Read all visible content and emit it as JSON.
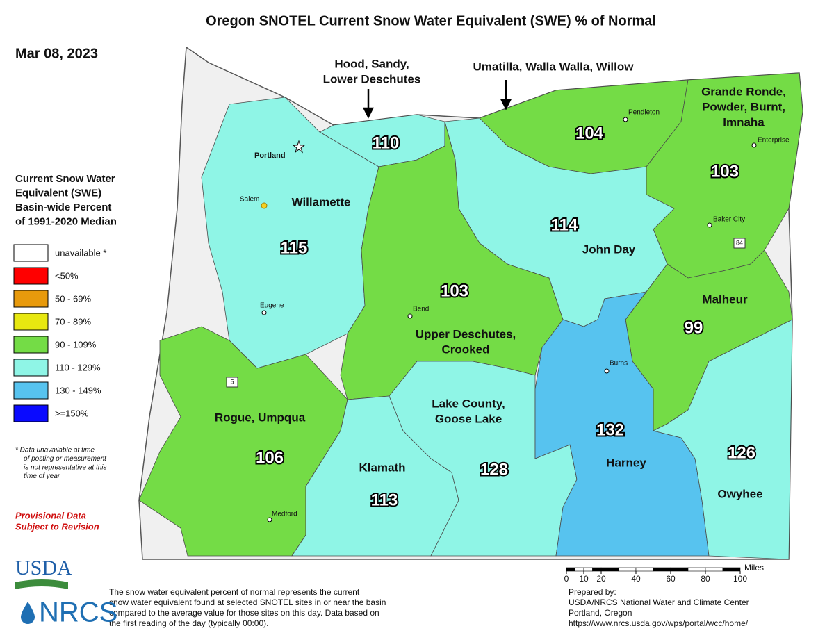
{
  "title": "Oregon SNOTEL Current Snow Water Equivalent (SWE) % of Normal",
  "date": "Mar 08, 2023",
  "legend": {
    "title_lines": [
      "Current Snow Water",
      "Equivalent (SWE)",
      "Basin-wide Percent",
      "of 1991-2020 Median"
    ],
    "items": [
      {
        "label": "unavailable *",
        "color": "#ffffff"
      },
      {
        "label": "<50%",
        "color": "#ff0000"
      },
      {
        "label": "50 - 69%",
        "color": "#e89a0c"
      },
      {
        "label": "70 - 89%",
        "color": "#e8e810"
      },
      {
        "label": "90 - 109%",
        "color": "#74dc46"
      },
      {
        "label": "110 - 129%",
        "color": "#8ff5e6"
      },
      {
        "label": "130 - 149%",
        "color": "#57c3ef"
      },
      {
        "label": ">=150%",
        "color": "#0a0aff"
      }
    ]
  },
  "footnote": [
    "*  Data unavailable at time",
    "of posting or measurement",
    "is not representative at this",
    "time of year"
  ],
  "provisional": [
    "Provisional Data",
    "Subject to Revision"
  ],
  "basins": [
    {
      "name": [
        "Hood, Sandy,",
        "Lower Deschutes"
      ],
      "value": 110,
      "color": "#8ff5e6"
    },
    {
      "name": [
        "Umatilla, Walla Walla, Willow"
      ],
      "value": 104,
      "color": "#74dc46"
    },
    {
      "name": [
        "Grande Ronde,",
        "Powder, Burnt,",
        "Imnaha"
      ],
      "value": 103,
      "color": "#74dc46"
    },
    {
      "name": [
        "Willamette"
      ],
      "value": 115,
      "color": "#8ff5e6"
    },
    {
      "name": [
        "John Day"
      ],
      "value": 114,
      "color": "#8ff5e6"
    },
    {
      "name": [
        "Upper Deschutes,",
        "Crooked"
      ],
      "value": 103,
      "color": "#74dc46"
    },
    {
      "name": [
        "Malheur"
      ],
      "value": 99,
      "color": "#74dc46"
    },
    {
      "name": [
        "Rogue, Umpqua"
      ],
      "value": 106,
      "color": "#74dc46"
    },
    {
      "name": [
        "Klamath"
      ],
      "value": 113,
      "color": "#8ff5e6"
    },
    {
      "name": [
        "Lake County,",
        "Goose Lake"
      ],
      "value": 128,
      "color": "#8ff5e6"
    },
    {
      "name": [
        "Harney"
      ],
      "value": 132,
      "color": "#57c3ef"
    },
    {
      "name": [
        "Owyhee"
      ],
      "value": 126,
      "color": "#8ff5e6"
    }
  ],
  "cities": [
    "Portland",
    "Salem",
    "Eugene",
    "Medford",
    "Bend",
    "Burns",
    "Pendleton",
    "Enterprise",
    "Baker City"
  ],
  "highways": [
    "5",
    "84"
  ],
  "scale": {
    "unit": "Miles",
    "ticks": [
      0,
      10,
      20,
      40,
      60,
      80,
      100
    ]
  },
  "description": [
    "The snow water equivalent percent of normal represents the current",
    "snow water equivalent found at selected SNOTEL sites in or near the basin",
    "compared to the average value for those sites on this day. Data based on",
    "the first reading of the day (typically 00:00)."
  ],
  "prepared": [
    "Prepared by:",
    "USDA/NRCS National Water and Climate Center",
    "Portland, Oregon",
    "https://www.nrcs.usda.gov/wps/portal/wcc/home/"
  ],
  "logos": [
    "USDA",
    "NRCS"
  ]
}
